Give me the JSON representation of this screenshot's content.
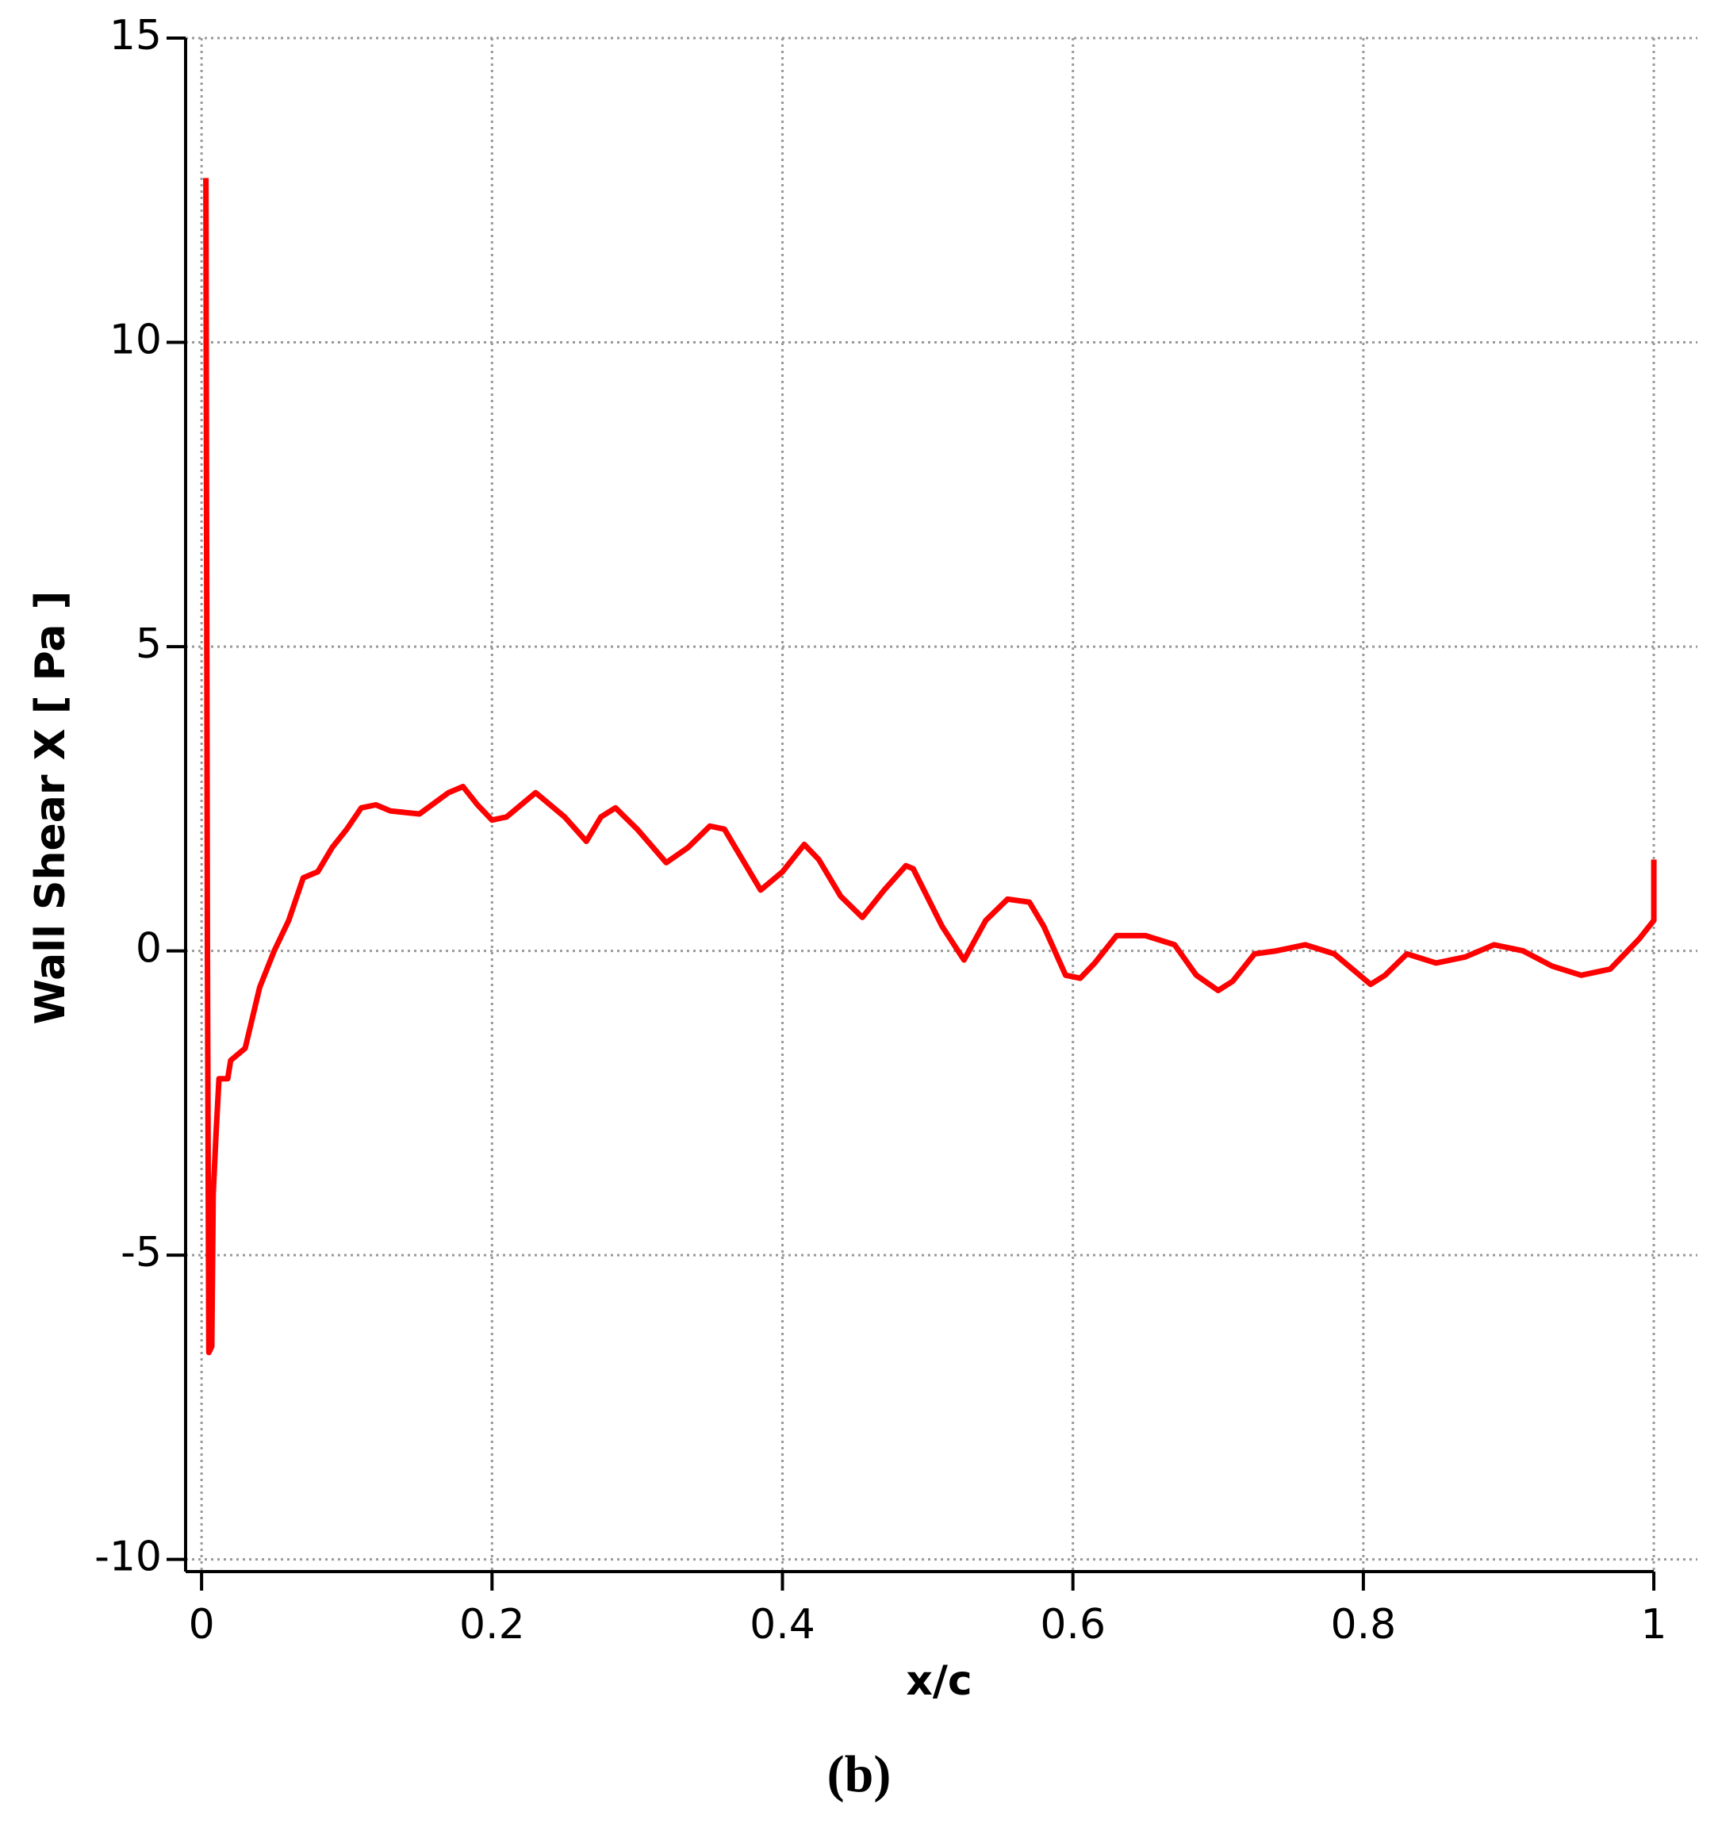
{
  "chart_data": {
    "type": "line",
    "caption": "(b)",
    "x_label": "x/c",
    "y_label": "Wall Shear X [ Pa ]",
    "xlim": [
      -0.011,
      1.03
    ],
    "ylim": [
      -10.2,
      15
    ],
    "xticks": [
      0,
      0.2,
      0.4,
      0.6,
      0.8,
      1
    ],
    "yticks": [
      -10,
      -5,
      0,
      5,
      10,
      15
    ],
    "grid": true,
    "series": [
      {
        "color": "#ff0000",
        "x": [
          0.003,
          0.004,
          0.005,
          0.007,
          0.008,
          0.01,
          0.012,
          0.018,
          0.02,
          0.03,
          0.04,
          0.05,
          0.06,
          0.07,
          0.08,
          0.09,
          0.1,
          0.11,
          0.12,
          0.13,
          0.15,
          0.17,
          0.18,
          0.19,
          0.2,
          0.21,
          0.23,
          0.25,
          0.265,
          0.275,
          0.285,
          0.3,
          0.32,
          0.335,
          0.35,
          0.36,
          0.37,
          0.385,
          0.4,
          0.415,
          0.425,
          0.44,
          0.455,
          0.47,
          0.485,
          0.49,
          0.51,
          0.525,
          0.54,
          0.555,
          0.57,
          0.58,
          0.595,
          0.605,
          0.615,
          0.63,
          0.65,
          0.67,
          0.685,
          0.7,
          0.71,
          0.725,
          0.74,
          0.76,
          0.78,
          0.795,
          0.805,
          0.815,
          0.83,
          0.85,
          0.87,
          0.89,
          0.91,
          0.93,
          0.95,
          0.97,
          0.99,
          1.0,
          1.0
        ],
        "values": [
          12.7,
          0,
          -6.6,
          -6.5,
          -4,
          -3,
          -2.1,
          -2.1,
          -1.8,
          -1.6,
          -0.6,
          0,
          0.5,
          1.2,
          1.3,
          1.7,
          2.0,
          2.35,
          2.4,
          2.3,
          2.25,
          2.6,
          2.7,
          2.4,
          2.15,
          2.2,
          2.6,
          2.2,
          1.8,
          2.2,
          2.35,
          2.0,
          1.45,
          1.7,
          2.05,
          2.0,
          1.6,
          1.0,
          1.3,
          1.75,
          1.5,
          0.9,
          0.55,
          1.0,
          1.4,
          1.35,
          0.4,
          -0.15,
          0.5,
          0.85,
          0.8,
          0.4,
          -0.4,
          -0.45,
          -0.2,
          0.25,
          0.25,
          0.1,
          -0.4,
          -0.65,
          -0.5,
          -0.05,
          0.0,
          0.1,
          -0.05,
          -0.35,
          -0.55,
          -0.4,
          -0.05,
          -0.2,
          -0.1,
          0.1,
          0.0,
          -0.25,
          -0.4,
          -0.3,
          0.2,
          0.5,
          1.5
        ]
      }
    ]
  }
}
